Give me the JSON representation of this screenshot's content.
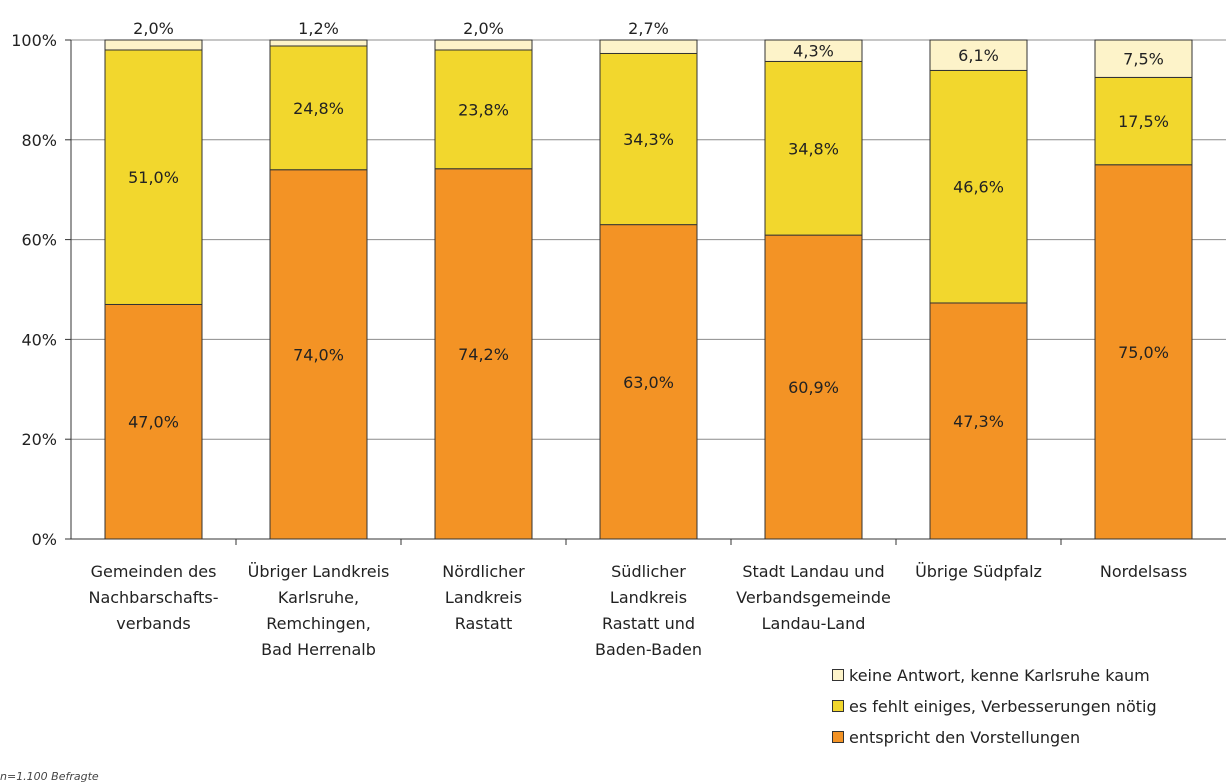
{
  "chart_data": {
    "type": "bar",
    "stacked": true,
    "categories": [
      [
        "Gemeinden des",
        "Nachbarschafts-",
        "verbands"
      ],
      [
        "Übriger Landkreis",
        "Karlsruhe,",
        "Remchingen,",
        "Bad Herrenalb"
      ],
      [
        "Nördlicher",
        "Landkreis",
        "Rastatt"
      ],
      [
        "Südlicher",
        "Landkreis",
        "Rastatt und",
        "Baden-Baden"
      ],
      [
        "Stadt Landau und",
        "Verbandsgemeinde",
        "Landau-Land"
      ],
      [
        "Übrige Südpfalz"
      ],
      [
        "Nordelsass"
      ]
    ],
    "series": [
      {
        "name": "entspricht den Vorstellungen",
        "color": "#f39325",
        "values": [
          47.0,
          74.0,
          74.2,
          63.0,
          60.9,
          47.3,
          75.0
        ],
        "labels": [
          "47,0%",
          "74,0%",
          "74,2%",
          "63,0%",
          "60,9%",
          "47,3%",
          "75,0%"
        ]
      },
      {
        "name": "es fehlt einiges, Verbesserungen nötig",
        "color": "#f2d72d",
        "values": [
          51.0,
          24.8,
          23.8,
          34.3,
          34.8,
          46.6,
          17.5
        ],
        "labels": [
          "51,0%",
          "24,8%",
          "23,8%",
          "34,3%",
          "34,8%",
          "46,6%",
          "17,5%"
        ]
      },
      {
        "name": "keine Antwort, kenne Karlsruhe kaum",
        "color": "#fdf3c9",
        "values": [
          2.0,
          1.2,
          2.0,
          2.7,
          4.3,
          6.1,
          7.5
        ],
        "labels": [
          "2,0%",
          "1,2%",
          "2,0%",
          "2,7%",
          "4,3%",
          "6,1%",
          "7,5%"
        ]
      }
    ],
    "ylim": [
      0,
      100
    ],
    "yticks": [
      "0%",
      "20%",
      "40%",
      "60%",
      "80%",
      "100%"
    ],
    "grid": true,
    "legend_position": "bottom-right",
    "footnote": "n=1.100 Befragte"
  }
}
